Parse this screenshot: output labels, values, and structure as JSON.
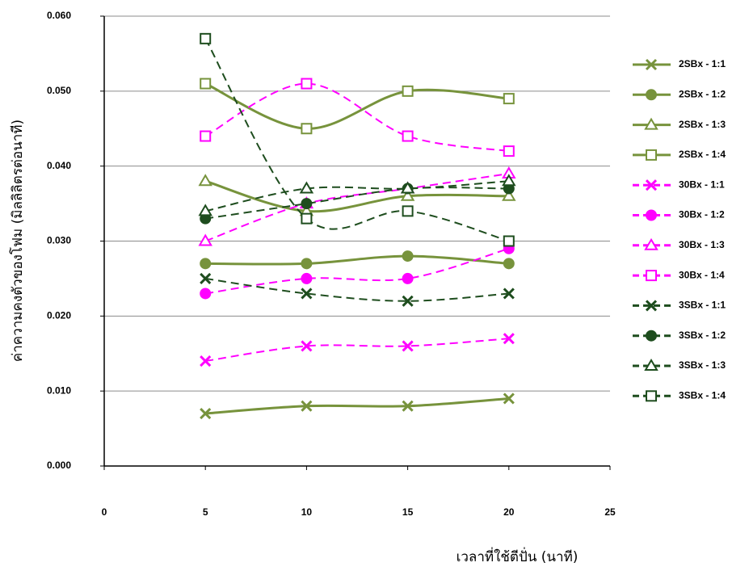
{
  "chart_data": {
    "type": "line",
    "x_label": "เวลาที่ใช้ตีปั่น (นาที)",
    "y_label": "ค่าความคงตัวของโฟม (มิลลิลิตรต่อนาที)",
    "xlim": [
      0,
      25
    ],
    "xticks": [
      0,
      5,
      10,
      15,
      20,
      25
    ],
    "ylim": [
      0,
      0.06
    ],
    "yticks": [
      {
        "value": 0,
        "label": "0.000"
      },
      {
        "value": 0.01,
        "label": "0.010"
      },
      {
        "value": 0.02,
        "label": "0.020"
      },
      {
        "value": 0.03,
        "label": "0.030"
      },
      {
        "value": 0.04,
        "label": "0.040"
      },
      {
        "value": 0.05,
        "label": "0.050"
      },
      {
        "value": 0.06,
        "label": "0.060"
      }
    ],
    "grid": true,
    "legend": "right",
    "x": [
      5,
      10,
      15,
      20
    ],
    "series": [
      {
        "name": "2SBx - 1:1",
        "color": "#77933c",
        "marker": "x",
        "dashed": false,
        "values": [
          0.007,
          0.008,
          0.008,
          0.009
        ]
      },
      {
        "name": "2SBx - 1:2",
        "color": "#77933c",
        "marker": "circle",
        "dashed": false,
        "values": [
          0.027,
          0.027,
          0.028,
          0.027
        ]
      },
      {
        "name": "2SBx - 1:3",
        "color": "#77933c",
        "marker": "triangle",
        "dashed": false,
        "values": [
          0.038,
          0.034,
          0.036,
          0.036
        ]
      },
      {
        "name": "2SBx - 1:4",
        "color": "#77933c",
        "marker": "square",
        "dashed": false,
        "values": [
          0.051,
          0.045,
          0.05,
          0.049
        ]
      },
      {
        "name": "30Bx - 1:1",
        "color": "#ff00ff",
        "marker": "x",
        "dashed": true,
        "values": [
          0.014,
          0.016,
          0.016,
          0.017
        ]
      },
      {
        "name": "30Bx - 1:2",
        "color": "#ff00ff",
        "marker": "circle",
        "dashed": true,
        "values": [
          0.023,
          0.025,
          0.025,
          0.029
        ]
      },
      {
        "name": "30Bx - 1:3",
        "color": "#ff00ff",
        "marker": "triangle",
        "dashed": true,
        "values": [
          0.03,
          0.035,
          0.037,
          0.039
        ]
      },
      {
        "name": "30Bx - 1:4",
        "color": "#ff00ff",
        "marker": "square",
        "dashed": true,
        "values": [
          0.044,
          0.051,
          0.044,
          0.042
        ]
      },
      {
        "name": "3SBx - 1:1",
        "color": "#1e4d1e",
        "marker": "x",
        "dashed": true,
        "values": [
          0.025,
          0.023,
          0.022,
          0.023
        ]
      },
      {
        "name": "3SBx - 1:2",
        "color": "#1e4d1e",
        "marker": "circle",
        "dashed": true,
        "values": [
          0.033,
          0.035,
          0.037,
          0.037
        ]
      },
      {
        "name": "3SBx - 1:3",
        "color": "#1e4d1e",
        "marker": "triangle",
        "dashed": true,
        "values": [
          0.034,
          0.037,
          0.037,
          0.038
        ]
      },
      {
        "name": "3SBx - 1:4",
        "color": "#1e4d1e",
        "marker": "square",
        "dashed": true,
        "values": [
          0.057,
          0.033,
          0.034,
          0.03
        ]
      }
    ]
  }
}
